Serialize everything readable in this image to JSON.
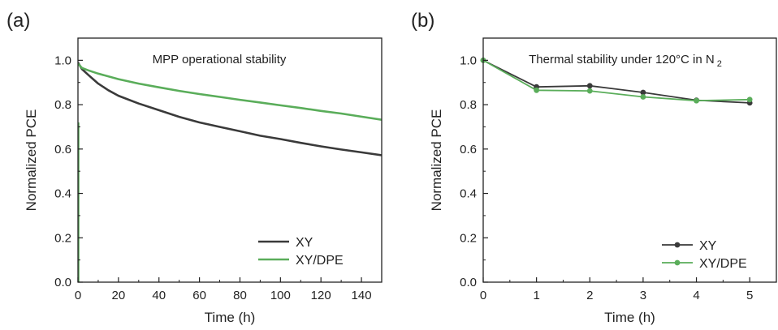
{
  "chart_data": [
    {
      "panel_label": "(a)",
      "type": "line",
      "title": "MPP operational stability",
      "xlabel": "Time (h)",
      "ylabel": "Normalized PCE",
      "xlim": [
        0,
        150
      ],
      "ylim": [
        0,
        1.1
      ],
      "xticks": [
        0,
        20,
        40,
        60,
        80,
        100,
        120,
        140
      ],
      "yticks": [
        0.0,
        0.2,
        0.4,
        0.6,
        0.8,
        1.0
      ],
      "ytick_labels": [
        "0.0",
        "0.2",
        "0.4",
        "0.6",
        "0.8",
        "1.0"
      ],
      "legend_position": "bottom-right",
      "markers": false,
      "series": [
        {
          "name": "XY",
          "color": "#3a3a3a",
          "x": [
            0,
            2,
            5,
            10,
            15,
            20,
            30,
            40,
            50,
            60,
            70,
            80,
            90,
            100,
            110,
            120,
            130,
            140,
            150
          ],
          "y": [
            0.99,
            0.96,
            0.935,
            0.895,
            0.865,
            0.84,
            0.805,
            0.775,
            0.745,
            0.72,
            0.7,
            0.68,
            0.66,
            0.645,
            0.628,
            0.612,
            0.598,
            0.585,
            0.572
          ]
        },
        {
          "name": "XY/DPE",
          "color": "#5aad5a",
          "x": [
            0,
            2,
            5,
            10,
            20,
            30,
            40,
            50,
            60,
            70,
            80,
            90,
            100,
            110,
            120,
            130,
            140,
            150
          ],
          "y": [
            0.985,
            0.965,
            0.955,
            0.94,
            0.915,
            0.895,
            0.878,
            0.862,
            0.848,
            0.835,
            0.822,
            0.81,
            0.797,
            0.785,
            0.772,
            0.76,
            0.746,
            0.732
          ]
        }
      ]
    },
    {
      "panel_label": "(b)",
      "type": "line",
      "title": "Thermal stability under 120°C in N",
      "title_subscript": "2",
      "xlabel": "Time (h)",
      "ylabel": "Normalized PCE",
      "xlim": [
        0,
        5.5
      ],
      "ylim": [
        0,
        1.1
      ],
      "xticks": [
        0,
        1,
        2,
        3,
        4,
        5
      ],
      "yticks": [
        0.0,
        0.2,
        0.4,
        0.6,
        0.8,
        1.0
      ],
      "ytick_labels": [
        "0.0",
        "0.2",
        "0.4",
        "0.6",
        "0.8",
        "1.0"
      ],
      "legend_position": "bottom-right",
      "markers": true,
      "series": [
        {
          "name": "XY",
          "color": "#3a3a3a",
          "x": [
            0,
            1,
            2,
            3,
            4,
            5
          ],
          "y": [
            1.0,
            0.88,
            0.885,
            0.855,
            0.82,
            0.808
          ]
        },
        {
          "name": "XY/DPE",
          "color": "#5aad5a",
          "x": [
            0,
            1,
            2,
            3,
            4,
            5
          ],
          "y": [
            1.0,
            0.865,
            0.862,
            0.835,
            0.818,
            0.823
          ]
        }
      ]
    }
  ]
}
